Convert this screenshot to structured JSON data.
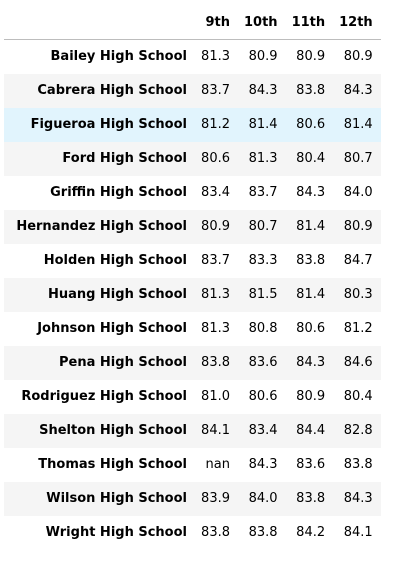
{
  "table": {
    "corner_label": "",
    "columns": [
      "9th",
      "10th",
      "11th",
      "12th"
    ],
    "highlighted_row": 2,
    "rows": [
      {
        "school": "Bailey High School",
        "values": [
          "81.3",
          "80.9",
          "80.9",
          "80.9"
        ]
      },
      {
        "school": "Cabrera High School",
        "values": [
          "83.7",
          "84.3",
          "83.8",
          "84.3"
        ]
      },
      {
        "school": "Figueroa High School",
        "values": [
          "81.2",
          "81.4",
          "80.6",
          "81.4"
        ]
      },
      {
        "school": "Ford High School",
        "values": [
          "80.6",
          "81.3",
          "80.4",
          "80.7"
        ]
      },
      {
        "school": "Griffin High School",
        "values": [
          "83.4",
          "83.7",
          "84.3",
          "84.0"
        ]
      },
      {
        "school": "Hernandez High School",
        "values": [
          "80.9",
          "80.7",
          "81.4",
          "80.9"
        ]
      },
      {
        "school": "Holden High School",
        "values": [
          "83.7",
          "83.3",
          "83.8",
          "84.7"
        ]
      },
      {
        "school": "Huang High School",
        "values": [
          "81.3",
          "81.5",
          "81.4",
          "80.3"
        ]
      },
      {
        "school": "Johnson High School",
        "values": [
          "81.3",
          "80.8",
          "80.6",
          "81.2"
        ]
      },
      {
        "school": "Pena High School",
        "values": [
          "83.8",
          "83.6",
          "84.3",
          "84.6"
        ]
      },
      {
        "school": "Rodriguez High School",
        "values": [
          "81.0",
          "80.6",
          "80.9",
          "80.4"
        ]
      },
      {
        "school": "Shelton High School",
        "values": [
          "84.1",
          "83.4",
          "84.4",
          "82.8"
        ]
      },
      {
        "school": "Thomas High School",
        "values": [
          "nan",
          "84.3",
          "83.6",
          "83.8"
        ]
      },
      {
        "school": "Wilson High School",
        "values": [
          "83.9",
          "84.0",
          "83.8",
          "84.3"
        ]
      },
      {
        "school": "Wright High School",
        "values": [
          "83.8",
          "83.8",
          "84.2",
          "84.1"
        ]
      }
    ]
  }
}
